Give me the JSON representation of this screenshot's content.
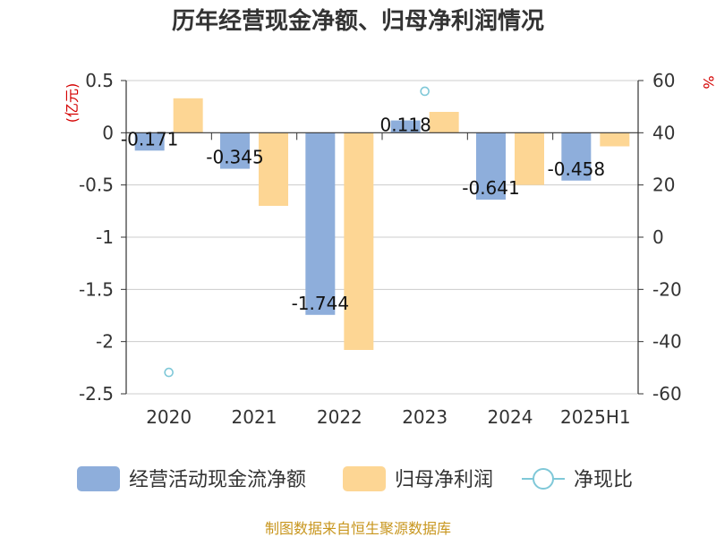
{
  "chart_data": {
    "type": "bar",
    "title": "历年经营现金净额、归母净利润情况",
    "categories": [
      "2020",
      "2021",
      "2022",
      "2023",
      "2024",
      "2025H1"
    ],
    "left_axis": {
      "unit": "(亿元)",
      "ylim": [
        -2.5,
        0.5
      ],
      "ticks": [
        "0.5",
        "0",
        "-0.5",
        "-1",
        "-1.5",
        "-2",
        "-2.5"
      ]
    },
    "right_axis": {
      "unit": "%",
      "ylim": [
        -60,
        60
      ],
      "ticks": [
        "60",
        "40",
        "20",
        "0",
        "-20",
        "-40",
        "-60"
      ]
    },
    "series": [
      {
        "name": "经营活动现金流净额",
        "axis": "left",
        "kind": "bar",
        "color": "#8eaedb",
        "values": [
          -0.171,
          -0.345,
          -1.744,
          0.118,
          -0.641,
          -0.458
        ],
        "labels": [
          "-0.171",
          "-0.345",
          "-1.744",
          "0.118",
          "-0.641",
          "-0.458"
        ]
      },
      {
        "name": "归母净利润",
        "axis": "left",
        "kind": "bar",
        "color": "#fdd694",
        "values": [
          0.33,
          -0.7,
          -2.08,
          0.2,
          -0.5,
          -0.13
        ]
      },
      {
        "name": "净现比",
        "axis": "right",
        "kind": "scatter",
        "color": "#7fc8d8",
        "values": [
          -51.8,
          null,
          null,
          55.9,
          null,
          null
        ]
      }
    ],
    "grid": true,
    "legend": "bottom"
  },
  "source": "制图数据来自恒生聚源数据库"
}
